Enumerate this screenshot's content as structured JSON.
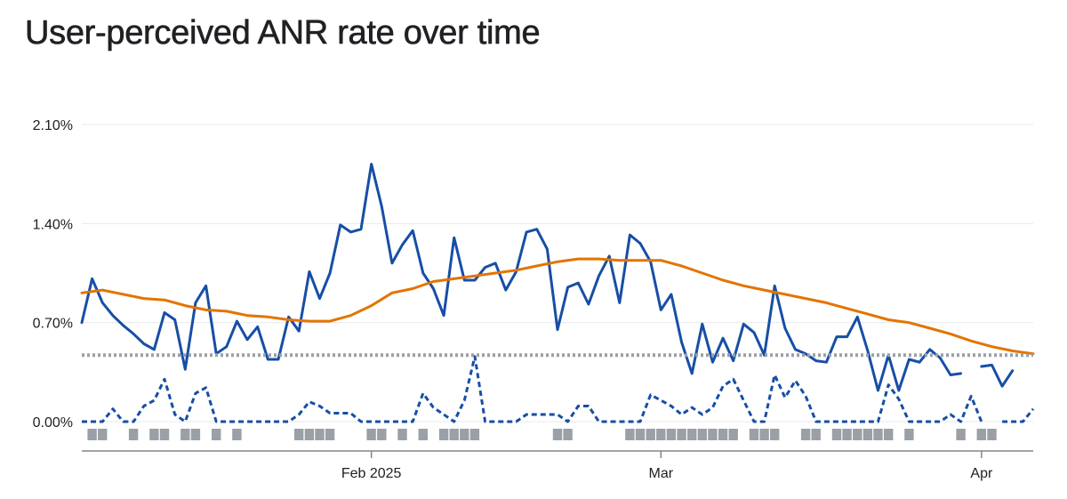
{
  "title": "User-perceived ANR rate over time",
  "chart_data": {
    "type": "line",
    "title": "User-perceived ANR rate over time",
    "xlabel": "",
    "ylabel": "",
    "yticks": [
      0.0,
      0.7,
      1.4,
      2.1
    ],
    "ytick_labels": [
      "0.00%",
      "0.70%",
      "1.40%",
      "2.10%"
    ],
    "ylim": [
      0,
      2.1
    ],
    "xlim": [
      "2025-01-04",
      "2025-04-06"
    ],
    "xticks": [
      "2025-02-01",
      "2025-03-01",
      "2025-04-01"
    ],
    "xtick_labels": [
      "Feb 2025",
      "Mar",
      "Apr"
    ],
    "grid": "horizontal",
    "colors": {
      "daily": "#174ea6",
      "average": "#e37400",
      "threshold": "#9aa0a6",
      "marker": "#9aa0a6",
      "grid": "#e8eaed",
      "axis": "#80868b"
    },
    "series": [
      {
        "style": "solid",
        "color": "#174ea6",
        "x": [
          "2025-01-04",
          "2025-01-05",
          "2025-01-06",
          "2025-01-07",
          "2025-01-08",
          "2025-01-09",
          "2025-01-10",
          "2025-01-11",
          "2025-01-12",
          "2025-01-13",
          "2025-01-14",
          "2025-01-15",
          "2025-01-16",
          "2025-01-17",
          "2025-01-18",
          "2025-01-19",
          "2025-01-20",
          "2025-01-21",
          "2025-01-22",
          "2025-01-23",
          "2025-01-24",
          "2025-01-25",
          "2025-01-26",
          "2025-01-27",
          "2025-01-28",
          "2025-01-29",
          "2025-01-30",
          "2025-01-31",
          "2025-02-01",
          "2025-02-02",
          "2025-02-03",
          "2025-02-04",
          "2025-02-05",
          "2025-02-06",
          "2025-02-07",
          "2025-02-08",
          "2025-02-09",
          "2025-02-10",
          "2025-02-11",
          "2025-02-12",
          "2025-02-13",
          "2025-02-14",
          "2025-02-15",
          "2025-02-16",
          "2025-02-17",
          "2025-02-18",
          "2025-02-19",
          "2025-02-20",
          "2025-02-21",
          "2025-02-22",
          "2025-02-23",
          "2025-02-24",
          "2025-02-25",
          "2025-02-26",
          "2025-02-27",
          "2025-02-28",
          "2025-03-01",
          "2025-03-02",
          "2025-03-03",
          "2025-03-04",
          "2025-03-05",
          "2025-03-06",
          "2025-03-07",
          "2025-03-08",
          "2025-03-09",
          "2025-03-10",
          "2025-03-11",
          "2025-03-12",
          "2025-03-13",
          "2025-03-14",
          "2025-03-15",
          "2025-03-16",
          "2025-03-17",
          "2025-03-18",
          "2025-03-19",
          "2025-03-20",
          "2025-03-21",
          "2025-03-22",
          "2025-03-23",
          "2025-03-24",
          "2025-03-25",
          "2025-03-26",
          "2025-03-27",
          "2025-03-28",
          "2025-03-29",
          "2025-03-30",
          "2025-03-31",
          "2025-04-01",
          "2025-04-02",
          "2025-04-03",
          "2025-04-04",
          "2025-04-05",
          "2025-04-06"
        ],
        "values": [
          0.7,
          1.01,
          0.84,
          0.75,
          0.68,
          0.62,
          0.55,
          0.51,
          0.77,
          0.72,
          0.37,
          0.84,
          0.96,
          0.48,
          0.53,
          0.71,
          0.58,
          0.67,
          0.44,
          0.44,
          0.74,
          0.64,
          1.06,
          0.87,
          1.05,
          1.39,
          1.34,
          1.36,
          1.82,
          1.52,
          1.12,
          1.25,
          1.35,
          1.05,
          0.94,
          0.75,
          1.3,
          1.0,
          1.0,
          1.09,
          1.12,
          0.93,
          1.06,
          1.34,
          1.36,
          1.22,
          0.65,
          0.95,
          0.98,
          0.83,
          1.03,
          1.17,
          0.84,
          1.32,
          1.26,
          1.13,
          0.79,
          0.9,
          0.56,
          0.34,
          0.69,
          0.42,
          0.59,
          0.43,
          0.69,
          0.63,
          0.47,
          0.96,
          0.66,
          0.51,
          0.48,
          0.43,
          0.42,
          0.6,
          0.6,
          0.74,
          0.5,
          0.22,
          0.47,
          0.22,
          0.44,
          0.42,
          0.51,
          0.45,
          0.33,
          0.34,
          null,
          0.39,
          0.4,
          0.25,
          0.36,
          null,
          null
        ]
      },
      {
        "style": "solid",
        "color": "#e37400",
        "x": [
          "2025-01-04",
          "2025-01-06",
          "2025-01-08",
          "2025-01-10",
          "2025-01-12",
          "2025-01-14",
          "2025-01-16",
          "2025-01-18",
          "2025-01-20",
          "2025-01-22",
          "2025-01-24",
          "2025-01-26",
          "2025-01-28",
          "2025-01-30",
          "2025-02-01",
          "2025-02-03",
          "2025-02-05",
          "2025-02-07",
          "2025-02-09",
          "2025-02-11",
          "2025-02-13",
          "2025-02-15",
          "2025-02-17",
          "2025-02-19",
          "2025-02-21",
          "2025-02-23",
          "2025-02-25",
          "2025-02-27",
          "2025-03-01",
          "2025-03-03",
          "2025-03-05",
          "2025-03-07",
          "2025-03-09",
          "2025-03-11",
          "2025-03-13",
          "2025-03-15",
          "2025-03-17",
          "2025-03-19",
          "2025-03-21",
          "2025-03-23",
          "2025-03-25",
          "2025-03-27",
          "2025-03-29",
          "2025-03-31",
          "2025-04-02",
          "2025-04-04",
          "2025-04-06"
        ],
        "values": [
          0.91,
          0.93,
          0.9,
          0.87,
          0.86,
          0.82,
          0.79,
          0.78,
          0.75,
          0.74,
          0.72,
          0.71,
          0.71,
          0.75,
          0.82,
          0.91,
          0.94,
          0.99,
          1.01,
          1.03,
          1.05,
          1.07,
          1.1,
          1.13,
          1.15,
          1.15,
          1.14,
          1.14,
          1.14,
          1.1,
          1.05,
          1.0,
          0.96,
          0.93,
          0.9,
          0.87,
          0.84,
          0.8,
          0.76,
          0.72,
          0.7,
          0.66,
          0.62,
          0.57,
          0.53,
          0.5,
          0.48
        ]
      },
      {
        "style": "dashed",
        "color": "#174ea6",
        "x": [
          "2025-01-04",
          "2025-01-05",
          "2025-01-06",
          "2025-01-07",
          "2025-01-08",
          "2025-01-09",
          "2025-01-10",
          "2025-01-11",
          "2025-01-12",
          "2025-01-13",
          "2025-01-14",
          "2025-01-15",
          "2025-01-16",
          "2025-01-17",
          "2025-01-18",
          "2025-01-19",
          "2025-01-20",
          "2025-01-21",
          "2025-01-22",
          "2025-01-23",
          "2025-01-24",
          "2025-01-25",
          "2025-01-26",
          "2025-01-27",
          "2025-01-28",
          "2025-01-29",
          "2025-01-30",
          "2025-01-31",
          "2025-02-01",
          "2025-02-02",
          "2025-02-03",
          "2025-02-04",
          "2025-02-05",
          "2025-02-06",
          "2025-02-07",
          "2025-02-08",
          "2025-02-09",
          "2025-02-10",
          "2025-02-11",
          "2025-02-12",
          "2025-02-13",
          "2025-02-14",
          "2025-02-15",
          "2025-02-16",
          "2025-02-17",
          "2025-02-18",
          "2025-02-19",
          "2025-02-20",
          "2025-02-21",
          "2025-02-22",
          "2025-02-23",
          "2025-02-24",
          "2025-02-25",
          "2025-02-26",
          "2025-02-27",
          "2025-02-28",
          "2025-03-01",
          "2025-03-02",
          "2025-03-03",
          "2025-03-04",
          "2025-03-05",
          "2025-03-06",
          "2025-03-07",
          "2025-03-08",
          "2025-03-09",
          "2025-03-10",
          "2025-03-11",
          "2025-03-12",
          "2025-03-13",
          "2025-03-14",
          "2025-03-15",
          "2025-03-16",
          "2025-03-17",
          "2025-03-18",
          "2025-03-19",
          "2025-03-20",
          "2025-03-21",
          "2025-03-22",
          "2025-03-23",
          "2025-03-24",
          "2025-03-25",
          "2025-03-26",
          "2025-03-27",
          "2025-03-28",
          "2025-03-29",
          "2025-03-30",
          "2025-03-31",
          "2025-04-01",
          "2025-04-02",
          "2025-04-03",
          "2025-04-04",
          "2025-04-05",
          "2025-04-06"
        ],
        "values": [
          0.0,
          0.0,
          0.0,
          0.09,
          0.0,
          0.0,
          0.11,
          0.15,
          0.3,
          0.05,
          0.0,
          0.2,
          0.24,
          0.0,
          0.0,
          0.0,
          0.0,
          0.0,
          0.0,
          0.0,
          0.0,
          0.05,
          0.14,
          0.11,
          0.06,
          0.06,
          0.06,
          0.0,
          0.0,
          0.0,
          0.0,
          0.0,
          0.0,
          0.2,
          0.1,
          0.05,
          0.0,
          0.15,
          0.46,
          0.0,
          0.0,
          0.0,
          0.0,
          0.05,
          0.05,
          0.05,
          0.05,
          0.0,
          0.11,
          0.11,
          0.0,
          0.0,
          0.0,
          0.0,
          0.0,
          0.19,
          0.15,
          0.11,
          0.05,
          0.1,
          0.05,
          0.1,
          0.25,
          0.3,
          0.15,
          0.0,
          0.0,
          0.33,
          0.17,
          0.29,
          0.18,
          0.0,
          0.0,
          0.0,
          0.0,
          0.0,
          0.0,
          0.0,
          0.26,
          0.16,
          0.0,
          0.0,
          0.0,
          0.0,
          0.05,
          0.0,
          0.18,
          0.0,
          null,
          0.0,
          0.0,
          0.0,
          0.09
        ]
      },
      {
        "style": "dotted",
        "color": "#9aa0a6",
        "x": [
          "2025-01-04",
          "2025-04-06"
        ],
        "values": [
          0.47,
          0.47
        ]
      }
    ],
    "markers": {
      "color": "#9aa0a6",
      "dates": [
        "2025-01-05",
        "2025-01-06",
        "2025-01-09",
        "2025-01-11",
        "2025-01-12",
        "2025-01-14",
        "2025-01-15",
        "2025-01-17",
        "2025-01-19",
        "2025-01-25",
        "2025-01-26",
        "2025-01-27",
        "2025-01-28",
        "2025-02-01",
        "2025-02-02",
        "2025-02-04",
        "2025-02-06",
        "2025-02-08",
        "2025-02-09",
        "2025-02-10",
        "2025-02-11",
        "2025-02-19",
        "2025-02-20",
        "2025-02-26",
        "2025-02-27",
        "2025-02-28",
        "2025-03-01",
        "2025-03-02",
        "2025-03-03",
        "2025-03-04",
        "2025-03-05",
        "2025-03-06",
        "2025-03-07",
        "2025-03-08",
        "2025-03-10",
        "2025-03-11",
        "2025-03-12",
        "2025-03-15",
        "2025-03-16",
        "2025-03-18",
        "2025-03-19",
        "2025-03-20",
        "2025-03-21",
        "2025-03-22",
        "2025-03-23",
        "2025-03-25",
        "2025-03-30",
        "2025-04-01",
        "2025-04-02"
      ]
    }
  }
}
